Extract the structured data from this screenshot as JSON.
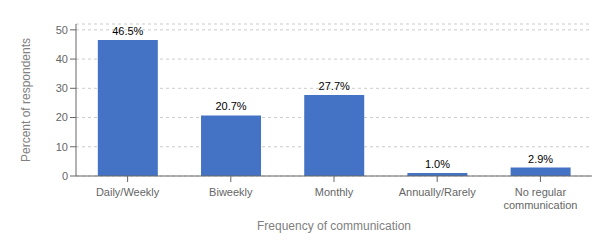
{
  "chart_data": {
    "type": "bar",
    "categories": [
      "Daily/Weekly",
      "Biweekly",
      "Monthly",
      "Annually/Rarely",
      "No regular\ncommunication"
    ],
    "values": [
      46.5,
      20.7,
      27.7,
      1.0,
      2.9
    ],
    "value_labels": [
      "46.5%",
      "20.7%",
      "27.7%",
      "1.0%",
      "2.9%"
    ],
    "color": "#4472C4",
    "xlabel": "Frequency of communication",
    "ylabel": "Percent of respondents",
    "ylim": [
      0,
      52
    ],
    "yticks": [
      0,
      10,
      20,
      30,
      40,
      50
    ],
    "grid": true,
    "data_labels": true
  }
}
